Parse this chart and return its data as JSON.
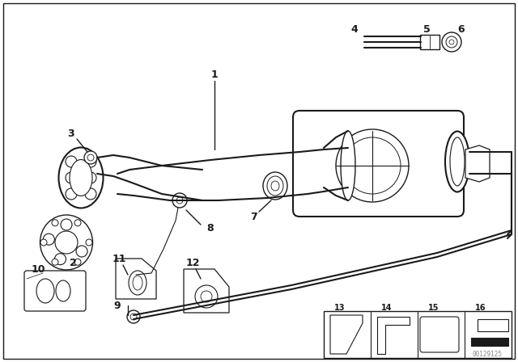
{
  "bg_color": "#ffffff",
  "line_color": "#1a1a1a",
  "text_color": "#1a1a1a",
  "watermark": "00129125",
  "figsize": [
    6.4,
    4.48
  ],
  "dpi": 100
}
